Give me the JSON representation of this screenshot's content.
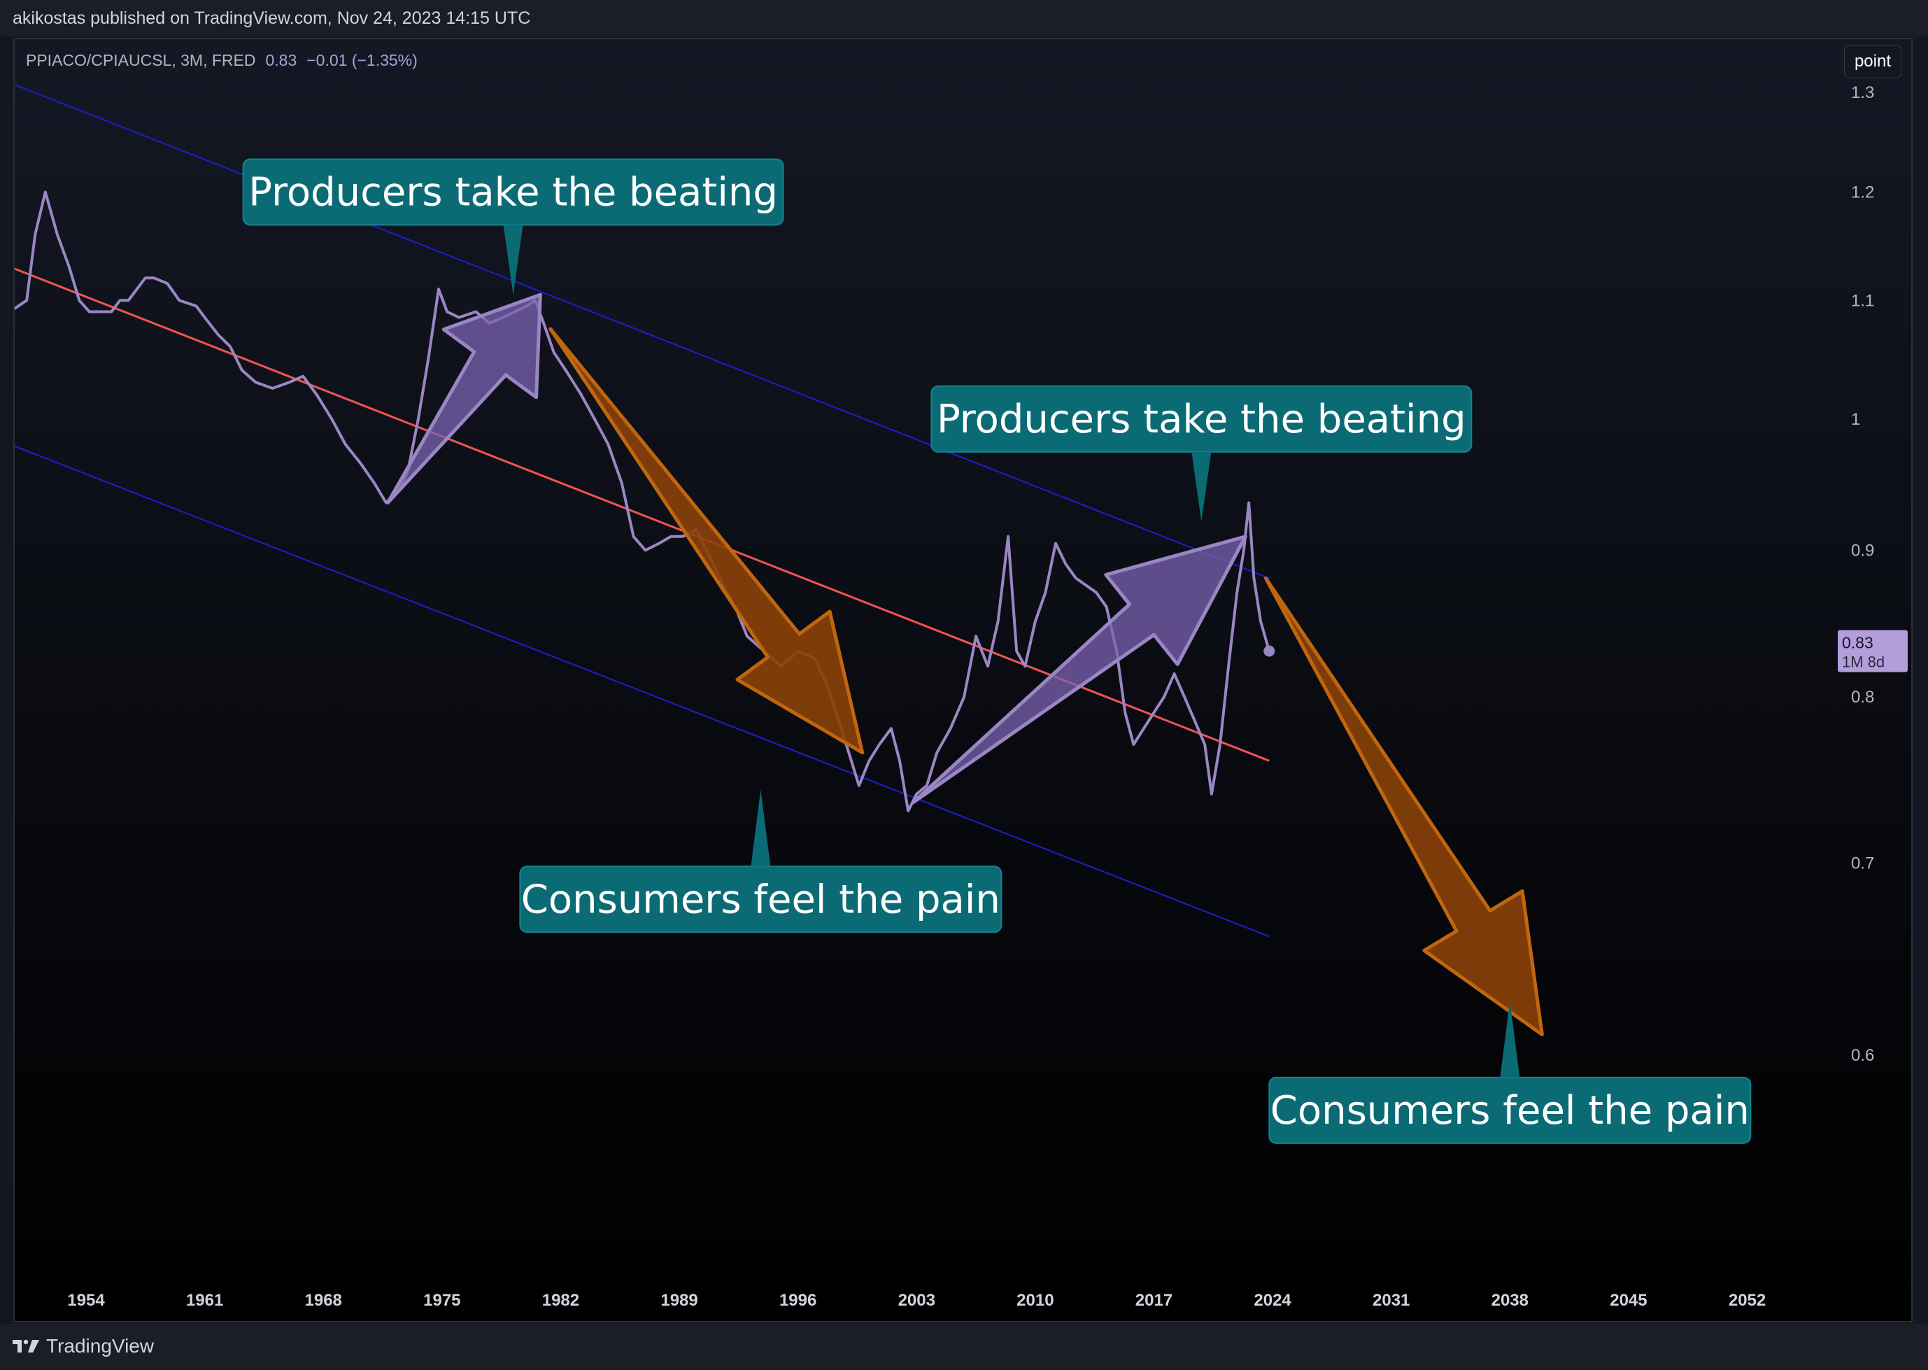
{
  "header": {
    "publish_info": "akikostas published on TradingView.com, Nov 24, 2023 14:15 UTC"
  },
  "legend": {
    "symbol": "PPIACO/CPIAUCSL, 3M, FRED",
    "value": "0.83",
    "change": "−0.01 (−1.35%)"
  },
  "controls": {
    "scale_mode": "point"
  },
  "footer": {
    "brand": "TradingView"
  },
  "colors": {
    "series": "#9b86c4",
    "regression": "#f05454",
    "channel": "#1d1dd0",
    "up_arrow_fill": "#7b63b3",
    "down_arrow_fill": "#8a4108",
    "down_arrow_stroke": "#c1660e",
    "callout": "#0b6b74",
    "price_tag": "#b39ddb"
  },
  "chart_data": {
    "type": "line",
    "scale": "log",
    "series": [
      {
        "values": [
          [
            1949.5,
            1.09
          ],
          [
            1950.5,
            1.1
          ],
          [
            1951.0,
            1.16
          ],
          [
            1951.6,
            1.2
          ],
          [
            1952.3,
            1.16
          ],
          [
            1953.0,
            1.13
          ],
          [
            1953.6,
            1.1
          ],
          [
            1954.2,
            1.09
          ],
          [
            1954.6,
            1.09
          ],
          [
            1955.0,
            1.09
          ],
          [
            1955.5,
            1.09
          ],
          [
            1956.0,
            1.1
          ],
          [
            1956.5,
            1.1
          ],
          [
            1957.0,
            1.11
          ],
          [
            1957.5,
            1.12
          ],
          [
            1958.0,
            1.12
          ],
          [
            1958.8,
            1.115
          ],
          [
            1959.5,
            1.1
          ],
          [
            1960.5,
            1.095
          ],
          [
            1961.0,
            1.085
          ],
          [
            1961.8,
            1.07
          ],
          [
            1962.5,
            1.06
          ],
          [
            1963.2,
            1.04
          ],
          [
            1964.0,
            1.03
          ],
          [
            1965.0,
            1.025
          ],
          [
            1966.0,
            1.03
          ],
          [
            1966.8,
            1.035
          ],
          [
            1967.6,
            1.02
          ],
          [
            1968.5,
            1.0
          ],
          [
            1969.3,
            0.98
          ],
          [
            1970.2,
            0.965
          ],
          [
            1971.0,
            0.95
          ],
          [
            1971.7,
            0.935
          ],
          [
            1972.5,
            0.945
          ],
          [
            1973.0,
            0.96
          ],
          [
            1973.6,
            1.0
          ],
          [
            1974.2,
            1.05
          ],
          [
            1974.8,
            1.11
          ],
          [
            1975.3,
            1.09
          ],
          [
            1976.0,
            1.085
          ],
          [
            1977.0,
            1.09
          ],
          [
            1977.8,
            1.08
          ],
          [
            1978.6,
            1.085
          ],
          [
            1979.3,
            1.09
          ],
          [
            1980.0,
            1.095
          ],
          [
            1980.5,
            1.1
          ],
          [
            1981.0,
            1.08
          ],
          [
            1981.6,
            1.055
          ],
          [
            1982.3,
            1.04
          ],
          [
            1983.2,
            1.02
          ],
          [
            1984.0,
            1.0
          ],
          [
            1984.8,
            0.98
          ],
          [
            1985.6,
            0.95
          ],
          [
            1986.3,
            0.91
          ],
          [
            1987.0,
            0.9
          ],
          [
            1987.8,
            0.905
          ],
          [
            1988.5,
            0.91
          ],
          [
            1989.2,
            0.91
          ],
          [
            1990.0,
            0.915
          ],
          [
            1990.8,
            0.895
          ],
          [
            1991.6,
            0.875
          ],
          [
            1992.3,
            0.86
          ],
          [
            1993.0,
            0.84
          ],
          [
            1994.0,
            0.83
          ],
          [
            1995.0,
            0.82
          ],
          [
            1996.0,
            0.83
          ],
          [
            1997.0,
            0.825
          ],
          [
            1997.8,
            0.805
          ],
          [
            1998.4,
            0.785
          ],
          [
            1999.0,
            0.765
          ],
          [
            1999.6,
            0.745
          ],
          [
            2000.2,
            0.76
          ],
          [
            2000.8,
            0.77
          ],
          [
            2001.5,
            0.78
          ],
          [
            2002.0,
            0.76
          ],
          [
            2002.5,
            0.73
          ],
          [
            2003.0,
            0.74
          ],
          [
            2003.6,
            0.745
          ],
          [
            2004.2,
            0.765
          ],
          [
            2005.0,
            0.78
          ],
          [
            2005.8,
            0.8
          ],
          [
            2006.5,
            0.84
          ],
          [
            2007.2,
            0.82
          ],
          [
            2007.8,
            0.85
          ],
          [
            2008.4,
            0.91
          ],
          [
            2008.9,
            0.83
          ],
          [
            2009.4,
            0.82
          ],
          [
            2010.0,
            0.85
          ],
          [
            2010.6,
            0.87
          ],
          [
            2011.2,
            0.905
          ],
          [
            2011.8,
            0.89
          ],
          [
            2012.4,
            0.88
          ],
          [
            2013.0,
            0.875
          ],
          [
            2013.6,
            0.87
          ],
          [
            2014.2,
            0.86
          ],
          [
            2014.8,
            0.83
          ],
          [
            2015.3,
            0.79
          ],
          [
            2015.8,
            0.77
          ],
          [
            2016.4,
            0.78
          ],
          [
            2017.0,
            0.79
          ],
          [
            2017.6,
            0.8
          ],
          [
            2018.2,
            0.815
          ],
          [
            2018.8,
            0.8
          ],
          [
            2019.4,
            0.785
          ],
          [
            2020.0,
            0.77
          ],
          [
            2020.4,
            0.74
          ],
          [
            2020.9,
            0.77
          ],
          [
            2021.4,
            0.82
          ],
          [
            2021.9,
            0.87
          ],
          [
            2022.3,
            0.9
          ],
          [
            2022.6,
            0.935
          ],
          [
            2022.9,
            0.88
          ],
          [
            2023.3,
            0.85
          ],
          [
            2023.8,
            0.83
          ]
        ]
      }
    ],
    "x_ticks": [
      "1954",
      "1961",
      "1968",
      "1975",
      "1982",
      "1989",
      "1996",
      "2003",
      "2010",
      "2017",
      "2024",
      "2031",
      "2038",
      "2045",
      "2052"
    ],
    "y_ticks": [
      "1.3",
      "1.2",
      "1.1",
      "1",
      "0.9",
      "0.8",
      "0.7",
      "0.6"
    ],
    "price_tag": {
      "value": "0.83",
      "countdown": "1M 8d"
    },
    "regression_line": [
      [
        1949.5,
        1.13
      ],
      [
        2023.8,
        0.76
      ]
    ],
    "channel_upper": [
      [
        1949.5,
        1.31
      ],
      [
        2023.8,
        0.88
      ]
    ],
    "channel_lower": [
      [
        1949.5,
        0.98
      ],
      [
        2023.8,
        0.66
      ]
    ],
    "up_arrows": [
      {
        "from": [
          1971.8,
          0.935
        ],
        "to": [
          1980.8,
          1.105
        ]
      },
      {
        "from": [
          2002.8,
          0.735
        ],
        "to": [
          2022.4,
          0.91
        ]
      }
    ],
    "down_arrows": [
      {
        "from": [
          1981.4,
          1.075
        ],
        "to": [
          1999.8,
          0.765
        ]
      },
      {
        "from": [
          2023.6,
          0.88
        ],
        "to": [
          2039.9,
          0.61
        ]
      }
    ],
    "annotations": [
      {
        "text": "Producers take the beating",
        "x": 1979.2,
        "y": 1.2,
        "pointer": "down"
      },
      {
        "text": "Producers take the beating",
        "x": 2019.8,
        "y": 1.0,
        "pointer": "down"
      },
      {
        "text": "Consumers feel the pain",
        "x": 1993.8,
        "y": 0.68,
        "pointer": "up"
      },
      {
        "text": "Consumers feel the pain",
        "x": 2038.0,
        "y": 0.574,
        "pointer": "up"
      }
    ]
  }
}
